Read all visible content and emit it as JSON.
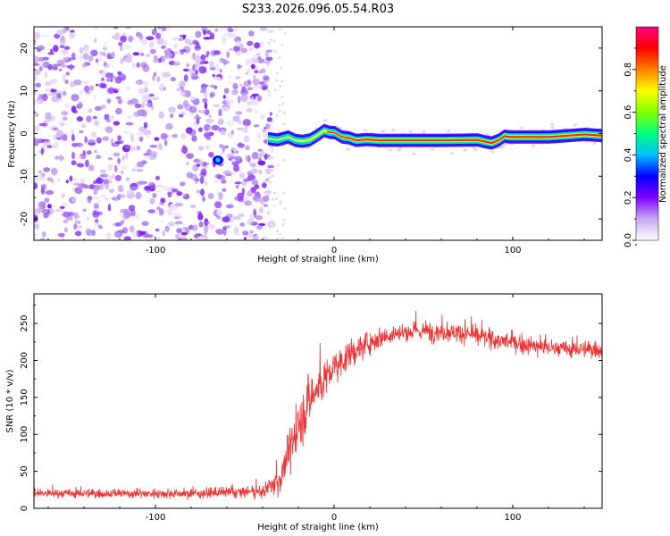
{
  "page_title": "S233.2026.096.05.54.R03",
  "chart_data": [
    {
      "type": "heatmap",
      "title": "S233.2026.096.05.54.R03",
      "xlabel": "Height of straight line (km)",
      "ylabel": "Frequency (Hz)",
      "xlim": [
        -168,
        150
      ],
      "ylim": [
        -25,
        25
      ],
      "xticks": [
        -100,
        0,
        100
      ],
      "yticks": [
        -20,
        -10,
        0,
        10,
        20
      ],
      "colorbar": {
        "label": "Normalized spectral amplitude",
        "range": [
          0,
          1
        ],
        "ticks": [
          0.0,
          0.2,
          0.4,
          0.6,
          0.8
        ],
        "colors": [
          "#ffffff",
          "#c8a8f0",
          "#8000ff",
          "#0000ff",
          "#00c0ff",
          "#00ff80",
          "#80ff00",
          "#ffff00",
          "#ff8000",
          "#ff0000",
          "#ff0080"
        ]
      },
      "noise_region": {
        "x": [
          -168,
          -37
        ],
        "frequency": [
          -25,
          25
        ]
      },
      "signal_trace": {
        "x": [
          -37,
          -32,
          -26,
          -22,
          -18,
          -14,
          -10,
          -6,
          -3,
          0,
          4,
          8,
          12,
          18,
          25,
          40,
          60,
          80,
          85,
          88,
          92,
          95,
          98,
          110,
          120,
          130,
          140,
          150
        ],
        "frequency": [
          -1.2,
          -1.5,
          -0.8,
          -1.6,
          -1.8,
          -1.5,
          -0.5,
          0.7,
          0.3,
          0.2,
          -0.8,
          -1.0,
          -1.6,
          -1.4,
          -1.6,
          -1.6,
          -1.6,
          -1.5,
          -2.0,
          -2.2,
          -1.5,
          -0.6,
          -0.8,
          -0.8,
          -0.8,
          -0.5,
          -0.2,
          -0.5
        ],
        "peak_amplitude": 0.95
      },
      "isolated_peak": {
        "x": -65,
        "frequency": -6.2,
        "amplitude": 0.3
      }
    },
    {
      "type": "line",
      "xlabel": "Height of straight line (km)",
      "ylabel": "SNR (10 * v/v)",
      "xlim": [
        -168,
        150
      ],
      "ylim": [
        0,
        290
      ],
      "xticks": [
        -100,
        0,
        100
      ],
      "yticks": [
        0,
        50,
        100,
        150,
        200,
        250
      ],
      "color": "#ee3333",
      "series": [
        {
          "name": "SNR",
          "profile_x": [
            -168,
            -120,
            -80,
            -50,
            -40,
            -30,
            -25,
            -20,
            -15,
            -10,
            -5,
            0,
            5,
            10,
            20,
            30,
            50,
            70,
            90,
            110,
            130,
            150
          ],
          "profile_mean": [
            20,
            20,
            20,
            22,
            22,
            40,
            80,
            110,
            140,
            160,
            175,
            190,
            200,
            210,
            225,
            235,
            240,
            238,
            228,
            220,
            215,
            215
          ],
          "profile_spread": [
            8,
            8,
            8,
            10,
            10,
            25,
            40,
            45,
            45,
            40,
            35,
            30,
            25,
            25,
            20,
            18,
            18,
            16,
            16,
            15,
            15,
            15
          ]
        }
      ]
    }
  ]
}
